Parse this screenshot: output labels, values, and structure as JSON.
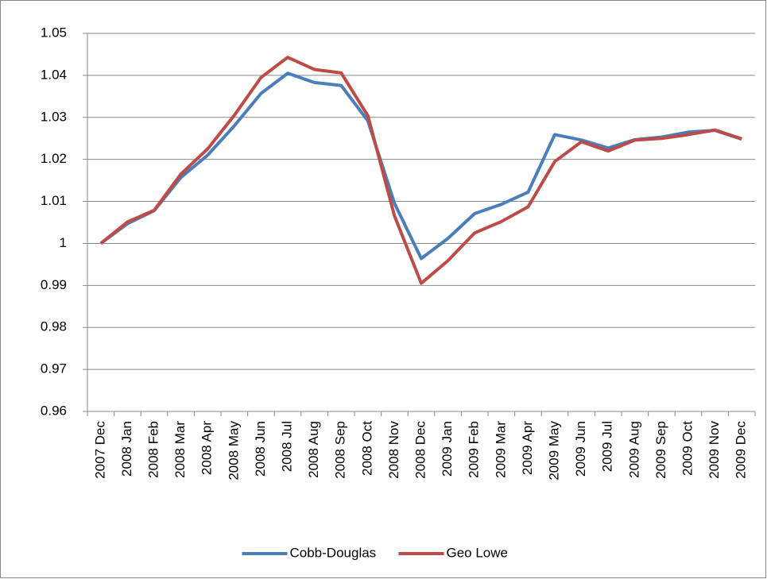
{
  "chart_data": {
    "type": "line",
    "categories": [
      "2007 Dec",
      "2008 Jan",
      "2008 Feb",
      "2008 Mar",
      "2008 Apr",
      "2008 May",
      "2008 Jun",
      "2008 Jul",
      "2008 Aug",
      "2008 Sep",
      "2008 Oct",
      "2008 Nov",
      "2008 Dec",
      "2009 Jan",
      "2009 Feb",
      "2009 Mar",
      "2009 Apr",
      "2009 May",
      "2009 Jun",
      "2009 Jul",
      "2009 Aug",
      "2009 Sep",
      "2009 Oct",
      "2009 Nov",
      "2009 Dec"
    ],
    "series": [
      {
        "name": "Cobb-Douglas",
        "color": "#4a7ebb",
        "values": [
          1.0,
          1.0047,
          1.0078,
          1.0157,
          1.021,
          1.028,
          1.0357,
          1.0405,
          1.0383,
          1.0376,
          1.0292,
          1.0095,
          0.9964,
          1.0012,
          1.0071,
          1.0093,
          1.0122,
          1.0259,
          1.0246,
          1.0227,
          1.0247,
          1.0253,
          1.0265,
          1.0269,
          1.0248
        ]
      },
      {
        "name": "Geo Lowe",
        "color": "#be4b48",
        "values": [
          1.0,
          1.0051,
          1.0079,
          1.0165,
          1.0225,
          1.0305,
          1.0395,
          1.0443,
          1.0414,
          1.0406,
          1.0304,
          1.0065,
          0.9905,
          0.9959,
          1.0025,
          1.0052,
          1.0087,
          1.0195,
          1.0242,
          1.022,
          1.0246,
          1.025,
          1.0259,
          1.027,
          1.0249
        ]
      }
    ],
    "ylim": [
      0.96,
      1.05
    ],
    "yticks": [
      0.96,
      0.97,
      0.98,
      0.99,
      1,
      1.01,
      1.02,
      1.03,
      1.04,
      1.05
    ],
    "grid": true,
    "legend": "bottom"
  }
}
